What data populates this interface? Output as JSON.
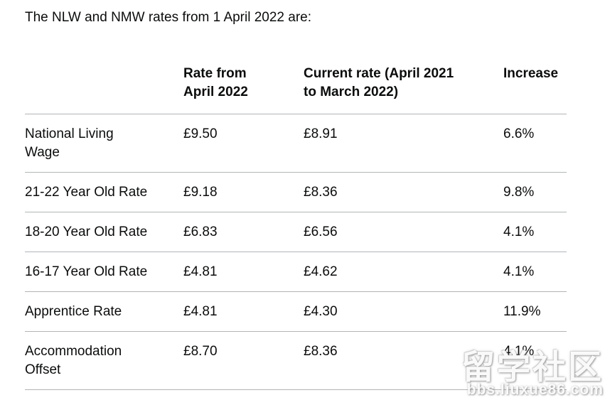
{
  "page": {
    "title": "The NLW and NMW rates from 1 April 2022 are:"
  },
  "table": {
    "headers": {
      "col1": "",
      "col2_line1": "Rate from",
      "col2_line2": "April 2022",
      "col3_line1": "Current rate (April 2021",
      "col3_line2": "to March 2022)",
      "col4": "Increase"
    },
    "rows": [
      {
        "label_line1": "National Living",
        "label_line2": "Wage",
        "rate_from_april_2022": "£9.50",
        "current_rate": "£8.91",
        "increase": "6.6%"
      },
      {
        "label_line1": "21-22 Year Old Rate",
        "label_line2": "",
        "rate_from_april_2022": "£9.18",
        "current_rate": "£8.36",
        "increase": "9.8%"
      },
      {
        "label_line1": "18-20 Year Old Rate",
        "label_line2": "",
        "rate_from_april_2022": "£6.83",
        "current_rate": "£6.56",
        "increase": "4.1%"
      },
      {
        "label_line1": "16-17 Year Old Rate",
        "label_line2": "",
        "rate_from_april_2022": "£4.81",
        "current_rate": "£4.62",
        "increase": "4.1%"
      },
      {
        "label_line1": "Apprentice Rate",
        "label_line2": "",
        "rate_from_april_2022": "£4.81",
        "current_rate": "£4.30",
        "increase": "11.9%"
      },
      {
        "label_line1": "Accommodation",
        "label_line2": "Offset",
        "rate_from_april_2022": "£8.70",
        "current_rate": "£8.36",
        "increase": "4.1%"
      }
    ]
  },
  "watermark": {
    "title": "留学社区",
    "subtitle": "bbs.liuxue86.com"
  },
  "colors": {
    "text": "#0b0c0c",
    "border": "#b1b4b6",
    "background": "#ffffff",
    "watermark": "#ffffff"
  }
}
